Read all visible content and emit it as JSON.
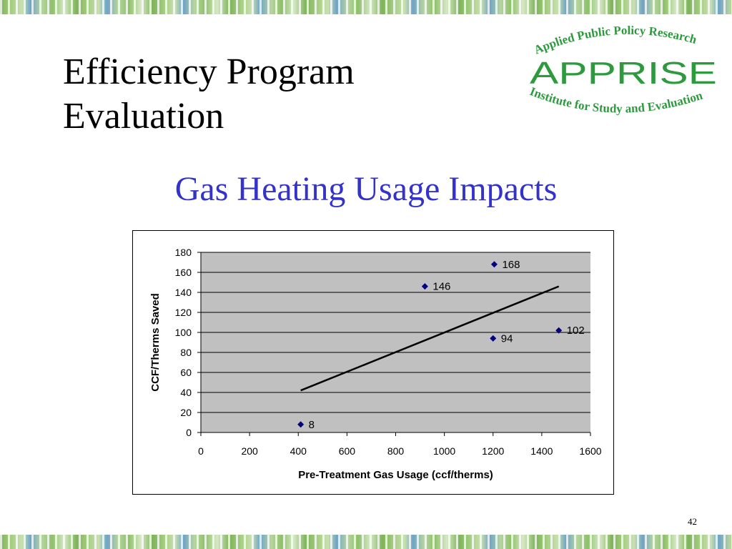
{
  "slide": {
    "title_line1": "Efficiency Program",
    "title_line2": "Evaluation",
    "subtitle": "Gas Heating Usage Impacts",
    "page_number": "42"
  },
  "logo": {
    "top_text": "Applied Public Policy Research",
    "name": "APPRISE",
    "bottom_text": "Institute for Study and Evaluation"
  },
  "colors": {
    "title": "#000000",
    "subtitle": "#3333cc",
    "logo": "#2e9a3e",
    "plot_area": "#c0c0c0",
    "marker": "#000080",
    "trendline": "#000000"
  },
  "chart_data": {
    "type": "scatter",
    "xlabel": "Pre-Treatment Gas Usage (ccf/therms)",
    "ylabel": "CCF/Therms Saved",
    "xlim": [
      0,
      1600
    ],
    "ylim": [
      0,
      180
    ],
    "x_ticks": [
      "0",
      "200",
      "400",
      "600",
      "800",
      "1000",
      "1200",
      "1400",
      "1600"
    ],
    "y_ticks": [
      "0",
      "20",
      "40",
      "60",
      "80",
      "100",
      "120",
      "140",
      "160",
      "180"
    ],
    "grid": "horizontal",
    "legend": "none",
    "points": [
      {
        "x": 410,
        "y": 8,
        "label": "8"
      },
      {
        "x": 920,
        "y": 146,
        "label": "146"
      },
      {
        "x": 1200,
        "y": 94,
        "label": "94"
      },
      {
        "x": 1205,
        "y": 168,
        "label": "168"
      },
      {
        "x": 1470,
        "y": 102,
        "label": "102"
      }
    ],
    "trendline": {
      "x": [
        410,
        1470
      ],
      "y": [
        42,
        146
      ]
    }
  }
}
